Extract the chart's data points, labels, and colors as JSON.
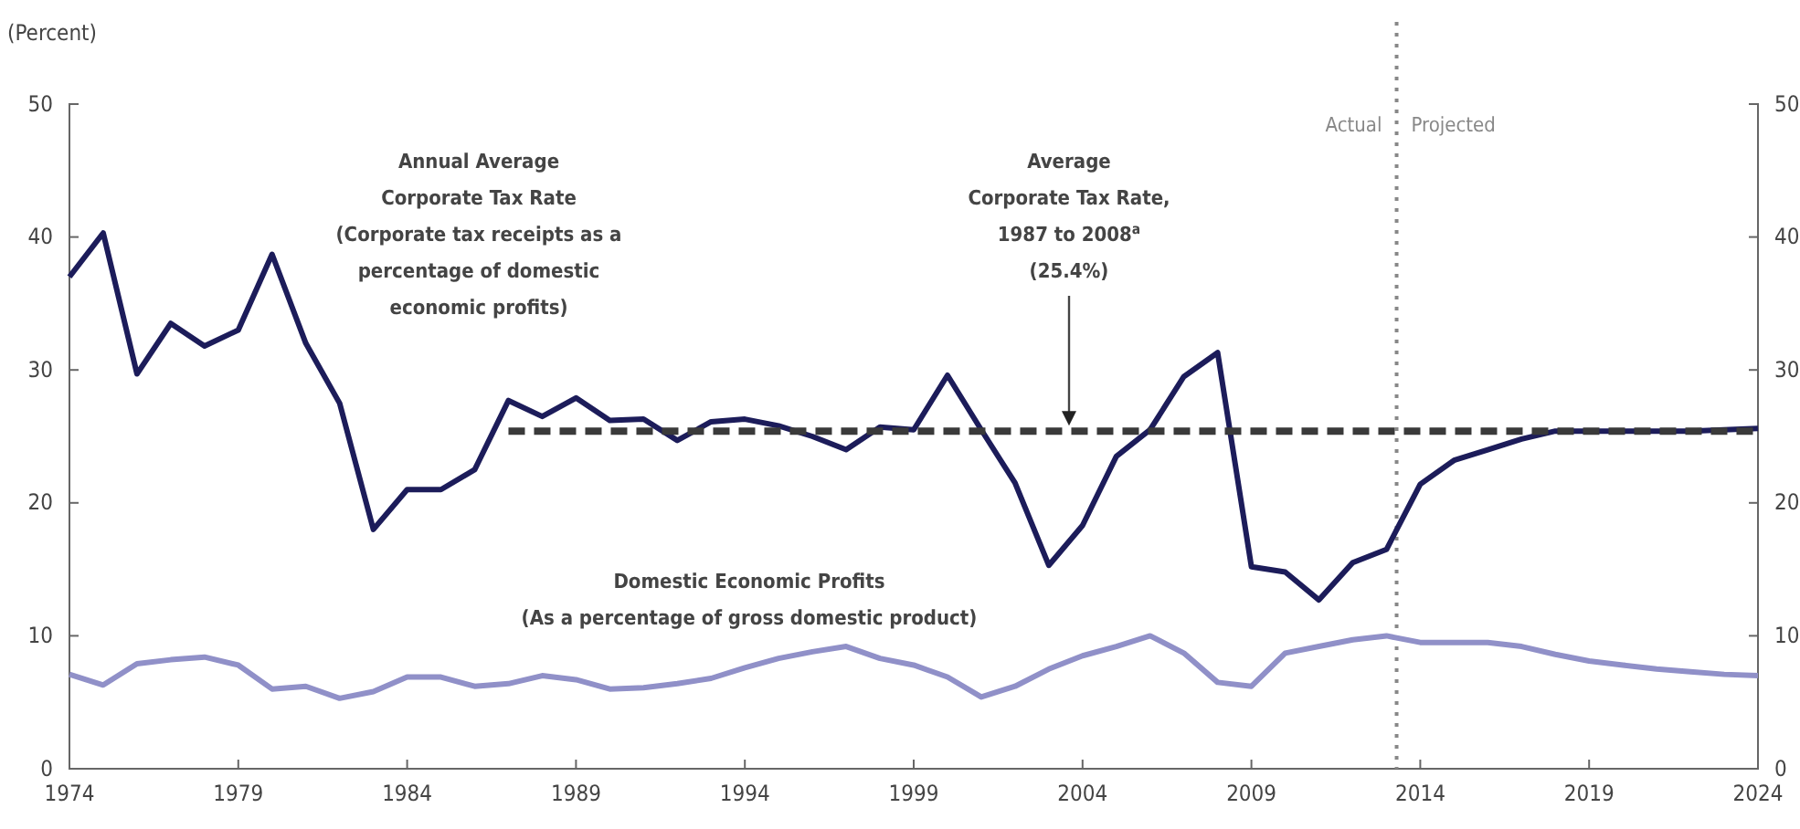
{
  "chart_data": {
    "type": "line",
    "ylabel": "(Percent)",
    "x": [
      1974,
      1975,
      1976,
      1977,
      1978,
      1979,
      1980,
      1981,
      1982,
      1983,
      1984,
      1985,
      1986,
      1987,
      1988,
      1989,
      1990,
      1991,
      1992,
      1993,
      1994,
      1995,
      1996,
      1997,
      1998,
      1999,
      2000,
      2001,
      2002,
      2003,
      2004,
      2005,
      2006,
      2007,
      2008,
      2009,
      2010,
      2011,
      2012,
      2013,
      2014,
      2015,
      2016,
      2017,
      2018,
      2019,
      2020,
      2021,
      2022,
      2023,
      2024
    ],
    "series": [
      {
        "color": "#1c1c5a",
        "values": [
          37,
          40.3,
          29.7,
          33.5,
          31.8,
          33,
          38.7,
          32,
          27.5,
          18,
          21,
          21,
          22.5,
          27.7,
          26.5,
          27.9,
          26.2,
          26.3,
          24.7,
          26.1,
          26.3,
          25.8,
          25,
          24,
          25.7,
          25.5,
          29.6,
          25.5,
          21.5,
          15.3,
          18.3,
          23.5,
          25.5,
          29.5,
          31.3,
          15.2,
          14.8,
          12.7,
          15.5,
          16.5,
          21.4,
          23.2,
          24,
          24.8,
          25.4,
          25.4,
          25.4,
          25.4,
          25.4,
          25.5,
          25.6
        ]
      },
      {
        "color": "#9090c8",
        "values": [
          7.1,
          6.3,
          7.9,
          8.2,
          8.4,
          7.8,
          6,
          6.2,
          5.3,
          5.8,
          6.9,
          6.9,
          6.2,
          6.4,
          7,
          6.7,
          6,
          6.1,
          6.4,
          6.8,
          7.6,
          8.3,
          8.8,
          9.2,
          8.3,
          7.8,
          6.9,
          5.4,
          6.2,
          7.5,
          8.5,
          9.2,
          10,
          8.7,
          6.5,
          6.2,
          8.7,
          9.2,
          9.7,
          10,
          9.5,
          9.5,
          9.5,
          9.2,
          8.6,
          8.1,
          7.8,
          7.5,
          7.3,
          7.1,
          7
        ]
      },
      {
        "color": "#3a3a3a",
        "line_style": "dashed",
        "x": [
          1987,
          2024
        ],
        "values": [
          25.4,
          25.4
        ]
      }
    ],
    "xlim": [
      1974,
      2024
    ],
    "xticks": [
      1974,
      1979,
      1984,
      1989,
      1994,
      1999,
      2004,
      2009,
      2014,
      2019,
      2024
    ],
    "ylim": [
      0,
      50
    ],
    "yticks": [
      0,
      10,
      20,
      30,
      40,
      50
    ],
    "y2lim": [
      0,
      50
    ],
    "y2ticks": [
      0,
      10,
      20,
      30,
      40,
      50
    ],
    "ref_lines": [
      {
        "axis": "x",
        "value": 2013.3,
        "line_style": "dotted",
        "color": "#888888"
      }
    ],
    "annotations": [
      "Annual Average\nCorporate Tax Rate\n(Corporate tax receipts as a\npercentage of domestic\neconomic profits)",
      "Average\nCorporate Tax Rate,\n1987 to 2008$^{a}$\n(25.4%)",
      "Domestic Economic Profits\n(As a percentage of gross domestic product)",
      "Actual",
      "Projected"
    ],
    "grid": false
  }
}
